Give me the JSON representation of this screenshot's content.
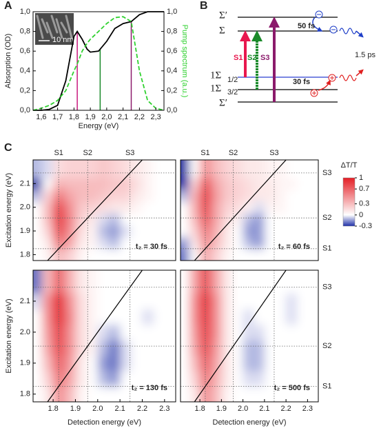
{
  "panel_labels": [
    "A",
    "B",
    "C"
  ],
  "chart_data": [
    {
      "type": "line",
      "xlabel": "Energy (eV)",
      "ylabel": "Absorption (OD)",
      "y2label": "Pump spectrum (a.u.)",
      "inset_label": "10 nm",
      "x": [
        1.55,
        1.6,
        1.65,
        1.7,
        1.75,
        1.8,
        1.82,
        1.85,
        1.88,
        1.9,
        1.95,
        2.0,
        2.05,
        2.1,
        2.15,
        2.2,
        2.25,
        2.3,
        2.35
      ],
      "series": [
        {
          "color": "#000000",
          "values": [
            0,
            0,
            0.01,
            0.05,
            0.3,
            0.75,
            0.8,
            0.72,
            0.62,
            0.59,
            0.6,
            0.7,
            0.83,
            0.88,
            0.9,
            0.97,
            1.0,
            1.0,
            1.0
          ]
        },
        {
          "color": "#2fd12f",
          "dashed": true,
          "axis": "y2",
          "values": [
            0,
            0.02,
            0.05,
            0.1,
            0.2,
            0.4,
            0.47,
            0.6,
            0.68,
            0.72,
            0.8,
            0.88,
            0.94,
            0.95,
            0.9,
            0.4,
            0.1,
            0.02,
            0
          ]
        }
      ],
      "markers": [
        {
          "x": 1.82,
          "color": "#c8177c"
        },
        {
          "x": 1.96,
          "color": "#1a8a2a"
        },
        {
          "x": 2.15,
          "color": "#8b1a6b"
        }
      ],
      "xlim": [
        1.55,
        2.35
      ],
      "xticks": [
        {
          "value": 1.6,
          "label": "1,6"
        },
        {
          "value": 1.7,
          "label": "1,7"
        },
        {
          "value": 1.8,
          "label": "1,8"
        },
        {
          "value": 1.9,
          "label": "1,9"
        },
        {
          "value": 2.0,
          "label": "2,0"
        },
        {
          "value": 2.1,
          "label": "2,1"
        },
        {
          "value": 2.2,
          "label": "2,2"
        },
        {
          "value": 2.3,
          "label": "2,3"
        }
      ],
      "ylim": [
        0,
        1
      ],
      "yticks": [
        {
          "value": 0,
          "label": "0,0"
        },
        {
          "value": 0.2,
          "label": "0,2"
        },
        {
          "value": 0.4,
          "label": "0,4"
        },
        {
          "value": 0.6,
          "label": "0,6"
        },
        {
          "value": 0.8,
          "label": "0,8"
        },
        {
          "value": 1.0,
          "label": "1,0"
        }
      ],
      "y2lim": [
        0,
        1
      ],
      "y2ticks": [
        {
          "value": 0,
          "label": "0,0"
        },
        {
          "value": 0.2,
          "label": "0,2"
        },
        {
          "value": 0.4,
          "label": "0,4"
        },
        {
          "value": 0.6,
          "label": "0,6"
        },
        {
          "value": 0.8,
          "label": "0,8"
        },
        {
          "value": 1.0,
          "label": "1,0"
        }
      ]
    },
    {
      "type": "heatmap",
      "annotation": "t₂ = 30 fs",
      "ylabel": "Excitation energy (eV)",
      "top_labels": [
        "S1",
        "S2",
        "S3"
      ],
      "ref_energies": [
        1.825,
        1.955,
        2.145
      ],
      "diagonal": true,
      "xlim": [
        1.71,
        2.35
      ],
      "ylim": [
        1.775,
        2.2
      ],
      "yticks": [
        1.8,
        1.9,
        {
          "value": 2.0,
          "label": "2.0"
        },
        2.1
      ],
      "x": [
        1.725,
        1.775,
        1.825,
        1.875,
        1.925,
        1.975,
        2.025,
        2.075,
        2.125,
        2.175,
        2.225,
        2.275,
        2.325
      ],
      "y": [
        1.8,
        1.85,
        1.9,
        1.95,
        2.0,
        2.05,
        2.1,
        2.15
      ],
      "values": [
        [
          0,
          0.05,
          0.3,
          0.2,
          0.05,
          0,
          0,
          0,
          0,
          0,
          0,
          0,
          0
        ],
        [
          0,
          0.1,
          0.6,
          0.4,
          0.1,
          0.05,
          -0.05,
          -0.1,
          0,
          0,
          0,
          0,
          0
        ],
        [
          0,
          0.2,
          0.8,
          0.5,
          0.15,
          0.05,
          -0.1,
          -0.15,
          -0.05,
          0,
          0,
          0,
          0
        ],
        [
          0,
          0.3,
          0.9,
          0.55,
          0.2,
          0.1,
          -0.05,
          -0.1,
          0,
          0,
          0,
          0,
          0
        ],
        [
          0,
          0.3,
          0.85,
          0.5,
          0.25,
          0.2,
          0.15,
          0.1,
          0.1,
          0.05,
          0,
          0,
          0
        ],
        [
          -0.1,
          0.2,
          0.6,
          0.4,
          0.3,
          0.3,
          0.25,
          0.2,
          0.2,
          0.1,
          0.05,
          0,
          0
        ],
        [
          -0.3,
          0,
          0.35,
          0.3,
          0.3,
          0.3,
          0.3,
          0.25,
          0.25,
          0.15,
          0.05,
          0,
          0
        ],
        [
          -0.1,
          -0.05,
          0.15,
          0.2,
          0.2,
          0.2,
          0.25,
          0.2,
          0.15,
          0.1,
          0.05,
          0,
          0
        ]
      ]
    },
    {
      "type": "heatmap",
      "annotation": "t₂ = 60 fs",
      "top_labels": [
        "S1",
        "S2",
        "S3"
      ],
      "right_labels": [
        "S1",
        "S2",
        "S3"
      ],
      "ref_energies": [
        1.825,
        1.955,
        2.145
      ],
      "diagonal": true,
      "xlim": [
        1.71,
        2.35
      ],
      "ylim": [
        1.775,
        2.2
      ],
      "x": [
        1.725,
        1.775,
        1.825,
        1.875,
        1.925,
        1.975,
        2.025,
        2.075,
        2.125,
        2.175,
        2.225,
        2.275,
        2.325
      ],
      "y": [
        1.8,
        1.85,
        1.9,
        1.95,
        2.0,
        2.05,
        2.1,
        2.15
      ],
      "values": [
        [
          -0.2,
          0,
          0.4,
          0.2,
          0.05,
          0,
          0,
          0,
          0,
          0,
          0,
          0,
          0
        ],
        [
          -0.15,
          0.1,
          0.5,
          0.3,
          0.1,
          0,
          -0.1,
          -0.15,
          0,
          0,
          0,
          0,
          0
        ],
        [
          0,
          0.2,
          0.6,
          0.35,
          0.1,
          0,
          -0.15,
          -0.15,
          0,
          0,
          0,
          0,
          0
        ],
        [
          0,
          0.3,
          0.75,
          0.4,
          0.15,
          0.05,
          -0.1,
          -0.15,
          0,
          0,
          0,
          0,
          0
        ],
        [
          0,
          0.35,
          0.85,
          0.4,
          0.2,
          0.15,
          0.05,
          -0.05,
          0.05,
          0.05,
          0,
          0,
          0
        ],
        [
          -0.1,
          0.35,
          0.9,
          0.45,
          0.25,
          0.2,
          0.15,
          0.1,
          0.1,
          0.05,
          0,
          0,
          0
        ],
        [
          -0.3,
          0.2,
          0.8,
          0.4,
          0.25,
          0.2,
          0.15,
          0.1,
          0.1,
          0.05,
          0.05,
          0,
          0
        ],
        [
          -0.3,
          0,
          0.5,
          0.3,
          0.2,
          0.15,
          0.1,
          0.1,
          0.05,
          0.05,
          0,
          0,
          0
        ]
      ],
      "cbar_title": "ΔT/T",
      "clim": [
        -0.3,
        1
      ],
      "cticks": [
        1,
        0.7,
        0.3,
        0,
        -0.3
      ],
      "colormap": [
        "#1e2fa8",
        "#ffffff",
        "#e41f26"
      ]
    },
    {
      "type": "heatmap",
      "annotation": "t₂ = 130 fs",
      "xlabel": "Detection energy (eV)",
      "ylabel": "Excitation energy (eV)",
      "ref_energies": [
        1.825,
        1.955,
        2.145
      ],
      "diagonal": true,
      "xlim": [
        1.71,
        2.35
      ],
      "ylim": [
        1.775,
        2.2
      ],
      "xticks": [
        1.8,
        1.9,
        {
          "value": 2.0,
          "label": "2.0"
        },
        2.1,
        2.2,
        2.3
      ],
      "yticks": [
        1.8,
        1.9,
        {
          "value": 2.0,
          "label": "2.0"
        },
        2.1
      ],
      "x": [
        1.725,
        1.775,
        1.825,
        1.875,
        1.925,
        1.975,
        2.025,
        2.075,
        2.125,
        2.175,
        2.225,
        2.275,
        2.325
      ],
      "y": [
        1.8,
        1.85,
        1.9,
        1.95,
        2.0,
        2.05,
        2.1,
        2.15
      ],
      "values": [
        [
          0,
          0.1,
          0.5,
          0.3,
          0.05,
          0,
          0,
          0,
          0,
          0,
          0,
          0,
          0
        ],
        [
          0,
          0.2,
          0.6,
          0.4,
          0.1,
          0,
          -0.1,
          -0.15,
          0,
          0,
          0,
          0,
          0
        ],
        [
          0,
          0.3,
          0.7,
          0.45,
          0.1,
          0,
          -0.15,
          -0.2,
          -0.05,
          0,
          0,
          0,
          0
        ],
        [
          0,
          0.4,
          0.8,
          0.5,
          0.15,
          0.05,
          -0.1,
          -0.2,
          -0.05,
          0,
          0,
          0,
          0
        ],
        [
          0,
          0.45,
          0.85,
          0.5,
          0.15,
          0.05,
          -0.05,
          -0.1,
          0,
          0,
          0,
          0,
          0
        ],
        [
          0,
          0.5,
          0.95,
          0.55,
          0.15,
          0.05,
          0,
          0,
          0,
          0,
          -0.05,
          0,
          0
        ],
        [
          -0.05,
          0.5,
          1,
          0.5,
          0.15,
          0.05,
          0,
          0,
          0,
          0,
          0,
          0,
          0
        ],
        [
          -0.2,
          0.3,
          0.7,
          0.35,
          0.1,
          0.05,
          0,
          0,
          0,
          0,
          0,
          0,
          0
        ]
      ]
    },
    {
      "type": "heatmap",
      "annotation": "t₂ = 500 fs",
      "xlabel": "Detection energy (eV)",
      "right_labels": [
        "S1",
        "S2",
        "S3"
      ],
      "ref_energies": [
        1.825,
        1.955,
        2.145
      ],
      "diagonal": true,
      "xlim": [
        1.71,
        2.35
      ],
      "ylim": [
        1.775,
        2.2
      ],
      "xticks": [
        1.8,
        1.9,
        {
          "value": 2.0,
          "label": "2.0"
        },
        2.1,
        2.2,
        2.3
      ],
      "x": [
        1.725,
        1.775,
        1.825,
        1.875,
        1.925,
        1.975,
        2.025,
        2.075,
        2.125,
        2.175,
        2.225,
        2.275,
        2.325
      ],
      "y": [
        1.8,
        1.85,
        1.9,
        1.95,
        2.0,
        2.05,
        2.1,
        2.15
      ],
      "values": [
        [
          0,
          0.1,
          0.5,
          0.3,
          0.05,
          0,
          0,
          0,
          0,
          0,
          0,
          0,
          0
        ],
        [
          0,
          0.2,
          0.6,
          0.35,
          0.1,
          0,
          -0.05,
          -0.05,
          0,
          0,
          0,
          0,
          0
        ],
        [
          0,
          0.3,
          0.7,
          0.4,
          0.1,
          0,
          -0.1,
          -0.1,
          0,
          0,
          0,
          0,
          0
        ],
        [
          0,
          0.4,
          0.8,
          0.45,
          0.1,
          0,
          -0.1,
          -0.1,
          0,
          0,
          0,
          0,
          0
        ],
        [
          0,
          0.45,
          0.85,
          0.5,
          0.1,
          0,
          -0.05,
          -0.05,
          0,
          0,
          0,
          0,
          0
        ],
        [
          0,
          0.5,
          0.9,
          0.5,
          0.1,
          0,
          -0.05,
          0,
          0,
          0,
          -0.05,
          0,
          0
        ],
        [
          0,
          0.5,
          0.95,
          0.5,
          0.1,
          0,
          0,
          0,
          0,
          0,
          -0.05,
          0,
          0
        ],
        [
          0,
          0.4,
          0.8,
          0.4,
          0.1,
          0,
          0,
          0,
          0,
          0,
          0,
          0,
          0
        ]
      ]
    }
  ],
  "diagram": {
    "levels": [
      {
        "main": "Σ′"
      },
      {
        "main": "Σ"
      },
      {
        "main": "1Σ",
        "sub": "1/2"
      },
      {
        "main": "1Σ",
        "sub": "3/2"
      },
      {
        "main": "Σ′"
      }
    ],
    "transitions": [
      "S1",
      "S2",
      "S3"
    ],
    "times": [
      "50 fs",
      "1.5 ps",
      "30 fs"
    ]
  }
}
